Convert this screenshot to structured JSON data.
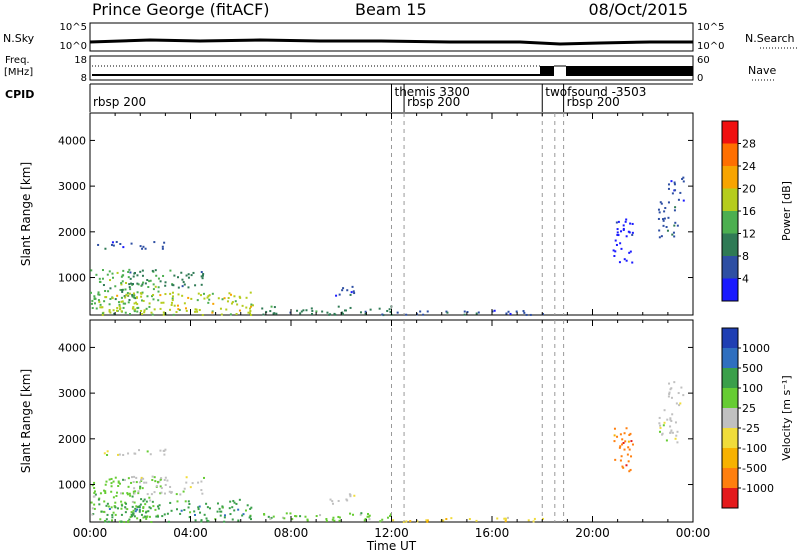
{
  "header": {
    "station": "Prince George (fitACF)",
    "beam": "Beam 15",
    "date": "08/Oct/2015"
  },
  "strips": {
    "nsky_label": "N.Sky",
    "nsky_ticks": [
      "10^5",
      "10^0"
    ],
    "nsearch_label": "N.Search",
    "nsearch_ticks": [
      "10^5",
      "10^0"
    ],
    "freq_label": "Freq.",
    "freq_unit": "[MHz]",
    "freq_ticks": [
      "18",
      "8"
    ],
    "nave_label": "Nave",
    "nave_ticks": [
      "60",
      "0"
    ],
    "cpid_label": "CPID",
    "cpid_entries": [
      {
        "t": 0.0,
        "label": "rbsp 200",
        "row": 1
      },
      {
        "t": 12.0,
        "label": "themis 3300",
        "row": 0
      },
      {
        "t": 12.5,
        "label": "rbsp 200",
        "row": 1
      },
      {
        "t": 18.0,
        "label": "twofsound -3503",
        "row": 0
      },
      {
        "t": 18.85,
        "label": "rbsp 200",
        "row": 1
      }
    ]
  },
  "chart_data": [
    {
      "type": "heatmap",
      "name": "power",
      "ylabel": "Slant Range [km]",
      "yticks": [
        "1000",
        "2000",
        "3000",
        "4000"
      ],
      "ylim": [
        180,
        4600
      ],
      "xlim": [
        0,
        24
      ],
      "colorbar_label": "Power [dB]",
      "colorbar_ticks": [
        "4",
        "8",
        "12",
        "16",
        "20",
        "24",
        "28"
      ],
      "colorbar_range": [
        0,
        32
      ],
      "colors": [
        "#1a1aff",
        "#2e4fa3",
        "#2f7a55",
        "#4caf50",
        "#b5cc1d",
        "#f7a400",
        "#ff6f00",
        "#f01010"
      ],
      "regions": [
        {
          "t0": 0.0,
          "t1": 2.8,
          "r0": 200,
          "r1": 1200,
          "level": 3
        },
        {
          "t0": 0.2,
          "t1": 3.0,
          "r0": 1650,
          "r1": 1800,
          "level": 1
        },
        {
          "t0": 0.3,
          "t1": 6.5,
          "r0": 200,
          "r1": 700,
          "level": 4
        },
        {
          "t0": 1.5,
          "t1": 4.5,
          "r0": 800,
          "r1": 1200,
          "level": 2
        },
        {
          "t0": 6.5,
          "t1": 12.0,
          "r0": 200,
          "r1": 400,
          "level": 2
        },
        {
          "t0": 9.5,
          "t1": 10.5,
          "r0": 600,
          "r1": 850,
          "level": 1
        },
        {
          "t0": 12.0,
          "t1": 18.0,
          "r0": 200,
          "r1": 300,
          "level": 1
        },
        {
          "t0": 20.8,
          "t1": 21.6,
          "r0": 1300,
          "r1": 2300,
          "level": 0
        },
        {
          "t0": 22.6,
          "t1": 23.4,
          "r0": 1900,
          "r1": 2700,
          "level": 1
        },
        {
          "t0": 23.0,
          "t1": 23.6,
          "r0": 2700,
          "r1": 3300,
          "level": 1
        }
      ]
    },
    {
      "type": "heatmap",
      "name": "velocity",
      "ylabel": "Slant Range [km]",
      "yticks": [
        "1000",
        "2000",
        "3000",
        "4000"
      ],
      "ylim": [
        180,
        4600
      ],
      "xlim": [
        0,
        24
      ],
      "xlabel": "Time UT",
      "xticks": [
        "00:00",
        "04:00",
        "08:00",
        "12:00",
        "16:00",
        "20:00",
        "00:00"
      ],
      "colorbar_label": "Velocity [m s⁻¹]",
      "colorbar_ticks": [
        "-1000",
        "-500",
        "-100",
        "-25",
        "25",
        "100",
        "500",
        "1000"
      ],
      "colors": [
        "#e41a1c",
        "#ff7f0e",
        "#f7b200",
        "#f0dc3a",
        "#c0c0c0",
        "#66cc33",
        "#3a9f4a",
        "#2f6fbf",
        "#1f3fb3"
      ],
      "regions": [
        {
          "t0": 0.0,
          "t1": 2.8,
          "r0": 200,
          "r1": 1200,
          "level": 5
        },
        {
          "t0": 0.2,
          "t1": 3.0,
          "r0": 1650,
          "r1": 1800,
          "level": 4
        },
        {
          "t0": 0.3,
          "t1": 6.5,
          "r0": 200,
          "r1": 700,
          "level": 6
        },
        {
          "t0": 1.5,
          "t1": 4.5,
          "r0": 800,
          "r1": 1200,
          "level": 4
        },
        {
          "t0": 6.5,
          "t1": 12.0,
          "r0": 200,
          "r1": 400,
          "level": 5
        },
        {
          "t0": 9.5,
          "t1": 10.5,
          "r0": 600,
          "r1": 850,
          "level": 4
        },
        {
          "t0": 12.0,
          "t1": 18.0,
          "r0": 200,
          "r1": 300,
          "level": 3
        },
        {
          "t0": 20.8,
          "t1": 21.6,
          "r0": 1300,
          "r1": 2300,
          "level": 1
        },
        {
          "t0": 22.6,
          "t1": 23.4,
          "r0": 1900,
          "r1": 2700,
          "level": 4
        },
        {
          "t0": 23.0,
          "t1": 23.6,
          "r0": 2700,
          "r1": 3300,
          "level": 4
        }
      ]
    }
  ],
  "mode_change_times": [
    12.0,
    12.5,
    18.0,
    18.5,
    18.85
  ]
}
